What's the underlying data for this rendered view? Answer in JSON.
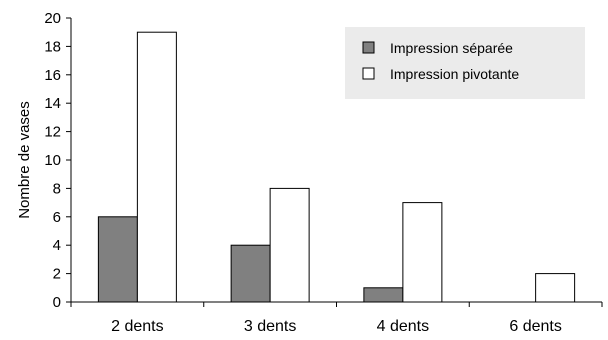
{
  "chart_data": {
    "type": "bar",
    "categories": [
      "2  dents",
      "3  dents",
      "4  dents",
      "6  dents"
    ],
    "series": [
      {
        "name": "Impression séparée",
        "values": [
          6,
          4,
          1,
          0
        ],
        "color": "#808080"
      },
      {
        "name": "Impression pivotante",
        "values": [
          19,
          8,
          7,
          2
        ],
        "color": "#ffffff"
      }
    ],
    "ylabel": "Nombre de vases",
    "xlabel": "",
    "title": "",
    "ylim": [
      0,
      20
    ],
    "yticks": [
      "0",
      "2",
      "4",
      "6",
      "8",
      "10",
      "12",
      "14",
      "16",
      "18",
      "20"
    ],
    "grid": false,
    "legend": "top-right",
    "legend_background": "#ebebeb"
  }
}
